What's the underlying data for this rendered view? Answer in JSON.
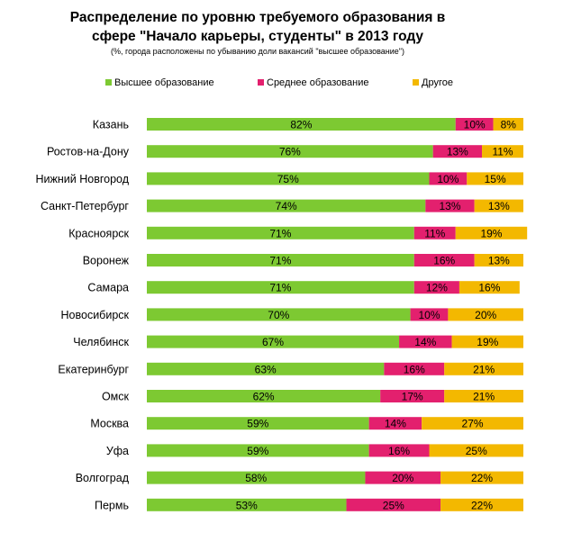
{
  "chart_data": {
    "type": "bar",
    "orientation": "horizontal",
    "stacked": true,
    "title": "Распределение по уровню требуемого образования в сфере \"Начало карьеры, студенты\" в 2013 году",
    "title_lines": [
      "Распределение по уровню требуемого образования в",
      "сфере \"Начало карьеры, студенты\" в 2013 году"
    ],
    "subtitle": "(%, города расположены по убыванию доли вакансий \"высшее образование\")",
    "legend_position": "top",
    "xlim": [
      0,
      100
    ],
    "grid": false,
    "categories": [
      "Казань",
      "Ростов-на-Дону",
      "Нижний Новгород",
      "Санкт-Петербург",
      "Красноярск",
      "Воронеж",
      "Самара",
      "Новосибирск",
      "Челябинск",
      "Екатеринбург",
      "Омск",
      "Москва",
      "Уфа",
      "Волгоград",
      "Пермь"
    ],
    "series": [
      {
        "name": "Высшее образование",
        "color": "#7dc932",
        "values": [
          82,
          76,
          75,
          74,
          71,
          71,
          71,
          70,
          67,
          63,
          62,
          59,
          59,
          58,
          53
        ]
      },
      {
        "name": "Среднее образование",
        "color": "#e3206e",
        "values": [
          10,
          13,
          10,
          13,
          11,
          16,
          12,
          10,
          14,
          16,
          17,
          14,
          16,
          20,
          25
        ]
      },
      {
        "name": "Другое",
        "color": "#f3b800",
        "values": [
          8,
          11,
          15,
          13,
          19,
          13,
          16,
          20,
          19,
          21,
          21,
          27,
          25,
          22,
          22
        ]
      }
    ],
    "value_suffix": "%"
  }
}
